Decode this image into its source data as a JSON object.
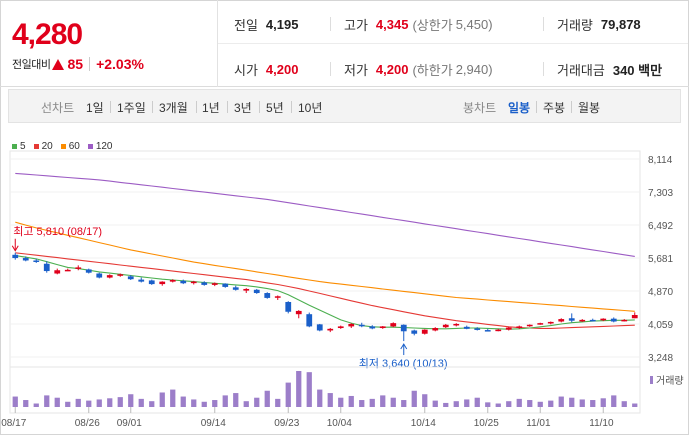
{
  "summary": {
    "price": "4,280",
    "change_label": "전일대비",
    "change_value": "85",
    "change_pct": "+2.03%",
    "prev_close": {
      "label": "전일",
      "value": "4,195"
    },
    "high": {
      "label": "고가",
      "value": "4,345",
      "sub_label": "(상한가",
      "sub_value": "5,450)"
    },
    "volume": {
      "label": "거래량",
      "value": "79,878"
    },
    "open": {
      "label": "시가",
      "value": "4,200"
    },
    "low": {
      "label": "저가",
      "value": "4,200",
      "sub_label": "(하한가",
      "sub_value": "2,940)"
    },
    "amount": {
      "label": "거래대금",
      "value": "340 백만"
    }
  },
  "tabs": {
    "line_label": "선차트",
    "line_items": [
      "1일",
      "1주일",
      "3개월",
      "1년",
      "3년",
      "5년",
      "10년"
    ],
    "candle_label": "봉차트",
    "candle_items": [
      "일봉",
      "주봉",
      "월봉"
    ],
    "selected": "일봉"
  },
  "colors": {
    "up": "#e0001b",
    "down": "#1a5fc9",
    "ma5": "#4caf50",
    "ma20": "#e53935",
    "ma60": "#fb8c00",
    "ma120": "#9c5cc4",
    "volume": "#9c7ec9"
  },
  "chart_data": {
    "type": "candlestick",
    "legend": [
      "5",
      "20",
      "60",
      "120"
    ],
    "y_ticks": [
      "8,114",
      "7,303",
      "6,492",
      "5,681",
      "4,870",
      "4,059",
      "3,248"
    ],
    "ylim": [
      3248,
      8114
    ],
    "x_tick_labels": [
      "08/17",
      "08/26",
      "09/01",
      "09/14",
      "09/23",
      "10/04",
      "10/14",
      "10/25",
      "11/01",
      "11/10"
    ],
    "x_tick_index": [
      0,
      7,
      11,
      19,
      26,
      31,
      39,
      45,
      50,
      56
    ],
    "volume_label": "거래량",
    "max_annotation": {
      "text": "최고 5,810 (08/17)",
      "index": 0,
      "value": 5810
    },
    "min_annotation": {
      "text": "최저 3,640 (10/13)",
      "index": 37,
      "value": 3640
    },
    "candles": [
      [
        5760,
        5810,
        5640,
        5680
      ],
      [
        5680,
        5720,
        5600,
        5620
      ],
      [
        5620,
        5660,
        5560,
        5600
      ],
      [
        5540,
        5600,
        5320,
        5360
      ],
      [
        5300,
        5420,
        5280,
        5380
      ],
      [
        5380,
        5420,
        5360,
        5390
      ],
      [
        5420,
        5500,
        5380,
        5450
      ],
      [
        5400,
        5420,
        5300,
        5320
      ],
      [
        5300,
        5320,
        5180,
        5200
      ],
      [
        5200,
        5280,
        5180,
        5260
      ],
      [
        5250,
        5300,
        5220,
        5280
      ],
      [
        5230,
        5260,
        5140,
        5160
      ],
      [
        5150,
        5200,
        5080,
        5100
      ],
      [
        5130,
        5150,
        5020,
        5040
      ],
      [
        5040,
        5110,
        5000,
        5100
      ],
      [
        5100,
        5160,
        5080,
        5140
      ],
      [
        5120,
        5150,
        5040,
        5060
      ],
      [
        5070,
        5120,
        5030,
        5100
      ],
      [
        5080,
        5110,
        5000,
        5020
      ],
      [
        5020,
        5080,
        4990,
        5060
      ],
      [
        5050,
        5060,
        4950,
        4970
      ],
      [
        4960,
        5000,
        4880,
        4900
      ],
      [
        4880,
        4940,
        4820,
        4920
      ],
      [
        4900,
        4920,
        4800,
        4820
      ],
      [
        4820,
        4840,
        4680,
        4700
      ],
      [
        4710,
        4760,
        4650,
        4740
      ],
      [
        4600,
        4620,
        4320,
        4360
      ],
      [
        4300,
        4400,
        4200,
        4380
      ],
      [
        4300,
        4340,
        3980,
        4000
      ],
      [
        4050,
        4060,
        3880,
        3900
      ],
      [
        3900,
        3960,
        3860,
        3940
      ],
      [
        3960,
        4020,
        3940,
        4000
      ],
      [
        4000,
        4080,
        3960,
        4060
      ],
      [
        4040,
        4090,
        3980,
        4020
      ],
      [
        4000,
        4030,
        3930,
        3950
      ],
      [
        3960,
        4010,
        3940,
        4000
      ],
      [
        4000,
        4100,
        3980,
        4080
      ],
      [
        4040,
        4050,
        3640,
        3880
      ],
      [
        3900,
        3920,
        3780,
        3820
      ],
      [
        3820,
        3930,
        3800,
        3920
      ],
      [
        3900,
        3980,
        3880,
        3960
      ],
      [
        3980,
        4060,
        3960,
        4040
      ],
      [
        4040,
        4080,
        4000,
        4060
      ],
      [
        3990,
        4020,
        3930,
        3940
      ],
      [
        3950,
        3980,
        3900,
        3920
      ],
      [
        3910,
        3940,
        3880,
        3900
      ],
      [
        3900,
        3940,
        3880,
        3920
      ],
      [
        3920,
        3990,
        3900,
        3970
      ],
      [
        3960,
        4020,
        3940,
        4000
      ],
      [
        4010,
        4050,
        3990,
        4040
      ],
      [
        4060,
        4090,
        4040,
        4080
      ],
      [
        4080,
        4120,
        4050,
        4110
      ],
      [
        4120,
        4200,
        4100,
        4180
      ],
      [
        4200,
        4320,
        4100,
        4140
      ],
      [
        4140,
        4180,
        4110,
        4160
      ],
      [
        4160,
        4190,
        4120,
        4150
      ],
      [
        4150,
        4200,
        4130,
        4190
      ],
      [
        4190,
        4220,
        4100,
        4120
      ],
      [
        4150,
        4180,
        4120,
        4160
      ],
      [
        4200,
        4345,
        4200,
        4280
      ]
    ],
    "volumes": [
      18,
      12,
      6,
      20,
      16,
      9,
      14,
      11,
      13,
      15,
      17,
      22,
      14,
      10,
      25,
      30,
      18,
      13,
      9,
      12,
      20,
      24,
      10,
      16,
      28,
      14,
      42,
      62,
      60,
      30,
      24,
      16,
      19,
      12,
      14,
      20,
      16,
      12,
      28,
      22,
      11,
      7,
      10,
      13,
      16,
      8,
      6,
      10,
      14,
      12,
      9,
      11,
      18,
      16,
      13,
      12,
      15,
      20,
      10,
      6
    ],
    "ma5": [
      5740,
      5700,
      5660,
      5590,
      5520,
      5450,
      5420,
      5380,
      5340,
      5310,
      5280,
      5250,
      5220,
      5190,
      5160,
      5140,
      5120,
      5100,
      5080,
      5060,
      5040,
      5020,
      5000,
      4970,
      4930,
      4880,
      4780,
      4650,
      4520,
      4400,
      4280,
      4160,
      4080,
      4020,
      3990,
      3980,
      3980,
      3970,
      3960,
      3950,
      3940,
      3940,
      3950,
      3960,
      3960,
      3950,
      3940,
      3930,
      3940,
      3960,
      3990,
      4020,
      4060,
      4090,
      4110,
      4130,
      4140,
      4150,
      4150,
      4160
    ],
    "ma20": [
      5810,
      5780,
      5750,
      5720,
      5690,
      5660,
      5630,
      5600,
      5570,
      5540,
      5510,
      5480,
      5450,
      5420,
      5390,
      5360,
      5330,
      5300,
      5270,
      5240,
      5210,
      5180,
      5150,
      5110,
      5070,
      5030,
      4980,
      4930,
      4870,
      4810,
      4750,
      4690,
      4630,
      4570,
      4510,
      4460,
      4410,
      4360,
      4310,
      4260,
      4220,
      4180,
      4140,
      4110,
      4080,
      4050,
      4020,
      3990,
      3970,
      3960,
      3950,
      3950,
      3960,
      3970,
      3980,
      3990,
      4000,
      4010,
      4020,
      4030
    ],
    "ma60": [
      6560,
      6490,
      6420,
      6360,
      6300,
      6240,
      6180,
      6120,
      6060,
      6000,
      5940,
      5880,
      5830,
      5780,
      5730,
      5680,
      5630,
      5580,
      5540,
      5500,
      5460,
      5420,
      5380,
      5340,
      5300,
      5260,
      5220,
      5180,
      5140,
      5100,
      5070,
      5040,
      5010,
      4980,
      4950,
      4920,
      4890,
      4860,
      4830,
      4800,
      4770,
      4740,
      4710,
      4690,
      4670,
      4650,
      4630,
      4610,
      4590,
      4570,
      4550,
      4530,
      4510,
      4490,
      4470,
      4450,
      4430,
      4410,
      4390,
      4370
    ],
    "ma120": [
      7760,
      7740,
      7720,
      7700,
      7680,
      7660,
      7640,
      7620,
      7600,
      7570,
      7540,
      7510,
      7480,
      7450,
      7420,
      7390,
      7360,
      7330,
      7300,
      7270,
      7240,
      7210,
      7180,
      7150,
      7120,
      7080,
      7040,
      7000,
      6960,
      6920,
      6880,
      6840,
      6800,
      6760,
      6720,
      6680,
      6640,
      6600,
      6560,
      6520,
      6480,
      6440,
      6400,
      6360,
      6320,
      6280,
      6240,
      6200,
      6160,
      6120,
      6080,
      6040,
      6000,
      5960,
      5920,
      5880,
      5840,
      5800,
      5760,
      5720
    ]
  }
}
